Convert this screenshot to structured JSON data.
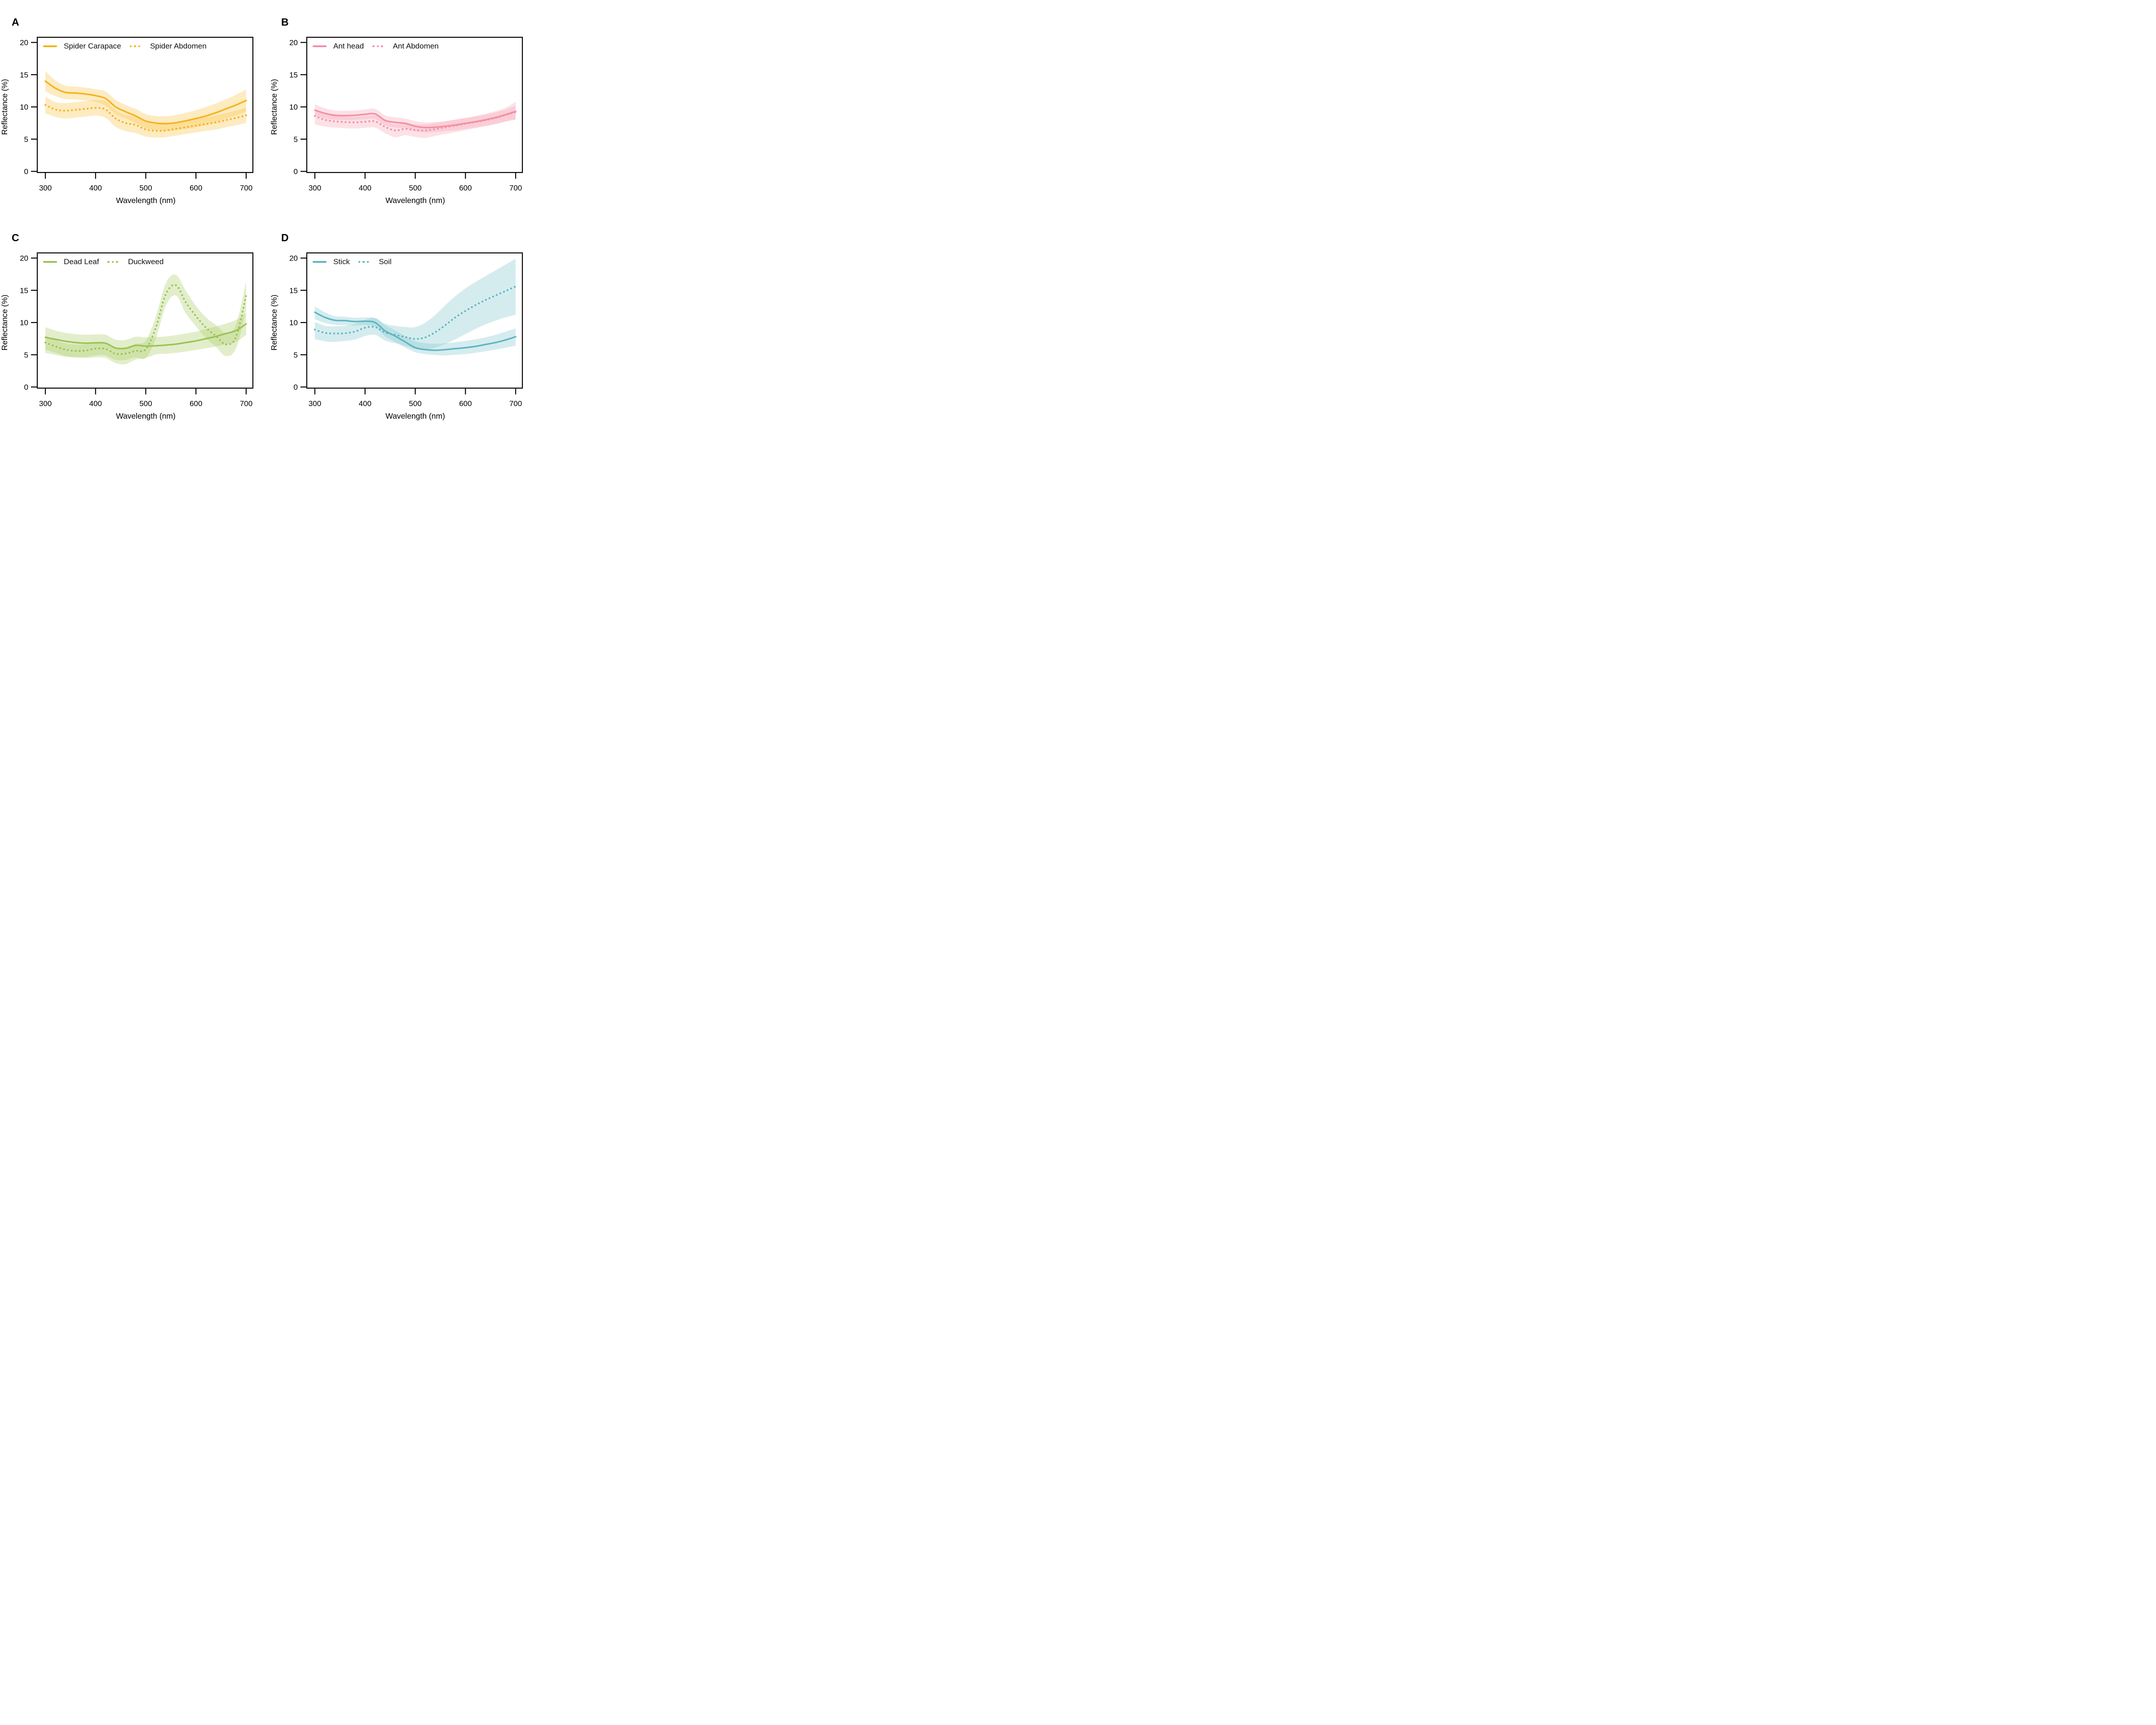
{
  "chart_data": {
    "type": "line",
    "xlabel": "Wavelength (nm)",
    "ylabel": "Reflectance (%)",
    "x_ticks": [
      300,
      400,
      500,
      600,
      700
    ],
    "y_ticks": [
      0,
      5,
      10,
      15,
      20
    ],
    "xlim": [
      300,
      700
    ],
    "ylim": [
      0,
      20
    ],
    "grid": false,
    "legend_position": "top-left-horizontal",
    "x": [
      300,
      320,
      340,
      360,
      380,
      400,
      420,
      440,
      460,
      480,
      500,
      520,
      540,
      560,
      580,
      600,
      620,
      640,
      660,
      680,
      700
    ],
    "panels": [
      {
        "letter": "A",
        "line_color": "#F5B21B",
        "band_color": "#F8C64E",
        "series": [
          {
            "name": "Spider Carapace",
            "style": "solid",
            "mean": [
              14.0,
              12.9,
              12.25,
              12.15,
              12.0,
              11.75,
              11.3,
              10.0,
              9.25,
              8.6,
              7.8,
              7.5,
              7.4,
              7.55,
              7.85,
              8.2,
              8.6,
              9.1,
              9.7,
              10.3,
              11.0
            ],
            "upper": [
              15.6,
              14.1,
              13.3,
              13.15,
              13.0,
              12.75,
              12.4,
              11.1,
              10.3,
              9.7,
              8.9,
              8.6,
              8.55,
              8.75,
              9.1,
              9.5,
              10.0,
              10.55,
              11.2,
              11.9,
              12.7
            ],
            "lower": [
              12.4,
              11.7,
              11.2,
              11.15,
              11.0,
              10.75,
              10.2,
              8.9,
              8.2,
              7.5,
              6.7,
              6.4,
              6.3,
              6.4,
              6.6,
              6.9,
              7.2,
              7.65,
              8.2,
              8.7,
              9.3
            ]
          },
          {
            "name": "Spider Abdomen",
            "style": "dotted",
            "mean": [
              10.3,
              9.6,
              9.4,
              9.55,
              9.7,
              9.85,
              9.6,
              8.2,
              7.5,
              7.2,
              6.5,
              6.3,
              6.35,
              6.6,
              6.85,
              7.1,
              7.35,
              7.6,
              7.95,
              8.3,
              8.7
            ],
            "upper": [
              11.6,
              10.75,
              10.6,
              10.75,
              10.9,
              11.05,
              10.9,
              9.5,
              8.75,
              8.45,
              7.6,
              7.35,
              7.4,
              7.65,
              7.9,
              8.15,
              8.4,
              8.7,
              9.05,
              9.45,
              9.9
            ],
            "lower": [
              9.0,
              8.45,
              8.2,
              8.35,
              8.5,
              8.65,
              8.3,
              6.9,
              6.25,
              5.95,
              5.4,
              5.25,
              5.3,
              5.55,
              5.8,
              6.05,
              6.3,
              6.5,
              6.85,
              7.15,
              7.5
            ]
          }
        ]
      },
      {
        "letter": "B",
        "line_color": "#F28FA2",
        "band_color": "#F5A8B9",
        "series": [
          {
            "name": "Ant head",
            "style": "solid",
            "mean": [
              9.5,
              9.0,
              8.7,
              8.65,
              8.7,
              8.85,
              8.9,
              7.9,
              7.6,
              7.45,
              7.0,
              6.8,
              6.85,
              7.0,
              7.2,
              7.45,
              7.7,
              8.0,
              8.35,
              8.8,
              9.3
            ],
            "upper": [
              10.4,
              9.8,
              9.45,
              9.4,
              9.45,
              9.6,
              9.7,
              8.7,
              8.4,
              8.2,
              7.8,
              7.6,
              7.65,
              7.8,
              8.05,
              8.3,
              8.6,
              8.95,
              9.35,
              9.85,
              10.8
            ],
            "lower": [
              8.7,
              8.25,
              8.0,
              7.95,
              8.0,
              8.1,
              8.15,
              7.15,
              6.8,
              6.7,
              6.25,
              6.05,
              6.1,
              6.25,
              6.4,
              6.6,
              6.85,
              7.1,
              7.4,
              7.75,
              8.1
            ]
          },
          {
            "name": "Ant Abdomen",
            "style": "dotted",
            "mean": [
              8.6,
              8.0,
              7.75,
              7.65,
              7.6,
              7.7,
              7.75,
              6.9,
              6.35,
              6.6,
              6.4,
              6.35,
              6.55,
              6.85,
              7.1,
              7.4,
              7.65,
              7.95,
              8.3,
              8.75,
              9.2
            ],
            "upper": [
              9.5,
              8.85,
              8.6,
              8.5,
              8.45,
              8.55,
              8.65,
              7.85,
              7.3,
              7.5,
              7.3,
              7.3,
              7.5,
              7.75,
              8.0,
              8.25,
              8.5,
              8.8,
              9.15,
              9.6,
              10.2
            ],
            "lower": [
              7.3,
              6.95,
              6.8,
              6.7,
              6.65,
              6.75,
              6.8,
              5.9,
              5.3,
              5.6,
              5.35,
              5.2,
              5.5,
              5.8,
              6.1,
              6.4,
              6.7,
              7.0,
              7.3,
              7.7,
              8.0
            ]
          }
        ]
      },
      {
        "letter": "C",
        "line_color": "#9BC355",
        "band_color": "#ABCE6B",
        "series": [
          {
            "name": "Dead Leaf",
            "style": "solid",
            "mean": [
              7.7,
              7.4,
              7.1,
              6.9,
              6.8,
              6.85,
              6.8,
              6.05,
              6.0,
              6.45,
              6.35,
              6.4,
              6.5,
              6.65,
              6.9,
              7.15,
              7.5,
              7.85,
              8.3,
              8.75,
              9.8
            ],
            "upper": [
              9.3,
              8.75,
              8.4,
              8.2,
              8.1,
              8.15,
              8.1,
              7.35,
              7.3,
              7.8,
              7.7,
              7.75,
              7.85,
              8.05,
              8.3,
              8.6,
              9.0,
              9.4,
              9.85,
              10.4,
              11.5
            ],
            "lower": [
              5.3,
              5.0,
              4.7,
              4.6,
              4.5,
              4.6,
              4.5,
              3.7,
              3.55,
              4.25,
              4.5,
              5.05,
              5.15,
              5.3,
              5.5,
              5.75,
              6.0,
              6.3,
              6.6,
              7.0,
              8.1
            ]
          },
          {
            "name": "Duckweed",
            "style": "dotted",
            "mean": [
              6.9,
              6.3,
              5.8,
              5.6,
              5.65,
              5.95,
              5.9,
              5.15,
              5.2,
              5.6,
              5.85,
              9.2,
              14.4,
              15.8,
              13.1,
              11.0,
              9.2,
              7.9,
              6.6,
              7.8,
              14.2
            ],
            "upper": [
              8.0,
              7.3,
              6.8,
              6.6,
              6.65,
              7.0,
              6.9,
              6.1,
              6.2,
              6.7,
              7.2,
              10.9,
              16.1,
              17.4,
              14.9,
              12.6,
              10.8,
              9.6,
              8.4,
              9.7,
              16.4
            ],
            "lower": [
              5.8,
              5.3,
              4.8,
              4.6,
              4.65,
              4.9,
              4.9,
              4.2,
              4.2,
              4.6,
              4.5,
              7.5,
              12.6,
              14.2,
              11.4,
              9.4,
              7.6,
              6.2,
              4.8,
              6.0,
              11.9
            ]
          }
        ]
      },
      {
        "letter": "D",
        "line_color": "#5EB6C0",
        "band_color": "#86C9D1",
        "series": [
          {
            "name": "Stick",
            "style": "solid",
            "mean": [
              11.6,
              10.8,
              10.35,
              10.3,
              10.15,
              10.2,
              10.0,
              8.7,
              7.9,
              7.0,
              6.1,
              5.8,
              5.7,
              5.8,
              5.95,
              6.1,
              6.3,
              6.6,
              6.9,
              7.3,
              7.8
            ],
            "upper": [
              12.5,
              11.6,
              11.0,
              10.9,
              10.75,
              10.8,
              10.7,
              9.6,
              8.8,
              7.9,
              7.1,
              6.8,
              6.7,
              6.8,
              6.95,
              7.15,
              7.4,
              7.7,
              8.1,
              8.6,
              9.1
            ],
            "lower": [
              10.5,
              9.95,
              9.65,
              9.6,
              9.55,
              9.6,
              9.35,
              7.85,
              7.0,
              6.1,
              5.4,
              5.1,
              4.95,
              4.9,
              5.0,
              5.1,
              5.3,
              5.55,
              5.8,
              6.1,
              6.4
            ]
          },
          {
            "name": "Soil",
            "style": "dotted",
            "mean": [
              8.9,
              8.4,
              8.3,
              8.35,
              8.6,
              9.2,
              9.3,
              8.45,
              8.1,
              7.75,
              7.45,
              7.7,
              8.5,
              9.6,
              10.8,
              11.8,
              12.7,
              13.5,
              14.2,
              14.9,
              15.6
            ],
            "upper": [
              10.1,
              9.5,
              9.4,
              9.5,
              9.8,
              10.4,
              10.7,
              9.8,
              9.5,
              9.3,
              9.3,
              10.0,
              11.2,
              12.7,
              14.1,
              15.3,
              16.3,
              17.2,
              18.1,
              19.0,
              19.9
            ],
            "lower": [
              7.4,
              7.1,
              7.0,
              7.15,
              7.35,
              7.9,
              8.1,
              7.2,
              6.8,
              6.4,
              5.9,
              5.8,
              6.1,
              6.7,
              7.4,
              8.2,
              9.0,
              9.7,
              10.3,
              10.8,
              11.2
            ]
          }
        ]
      }
    ]
  }
}
